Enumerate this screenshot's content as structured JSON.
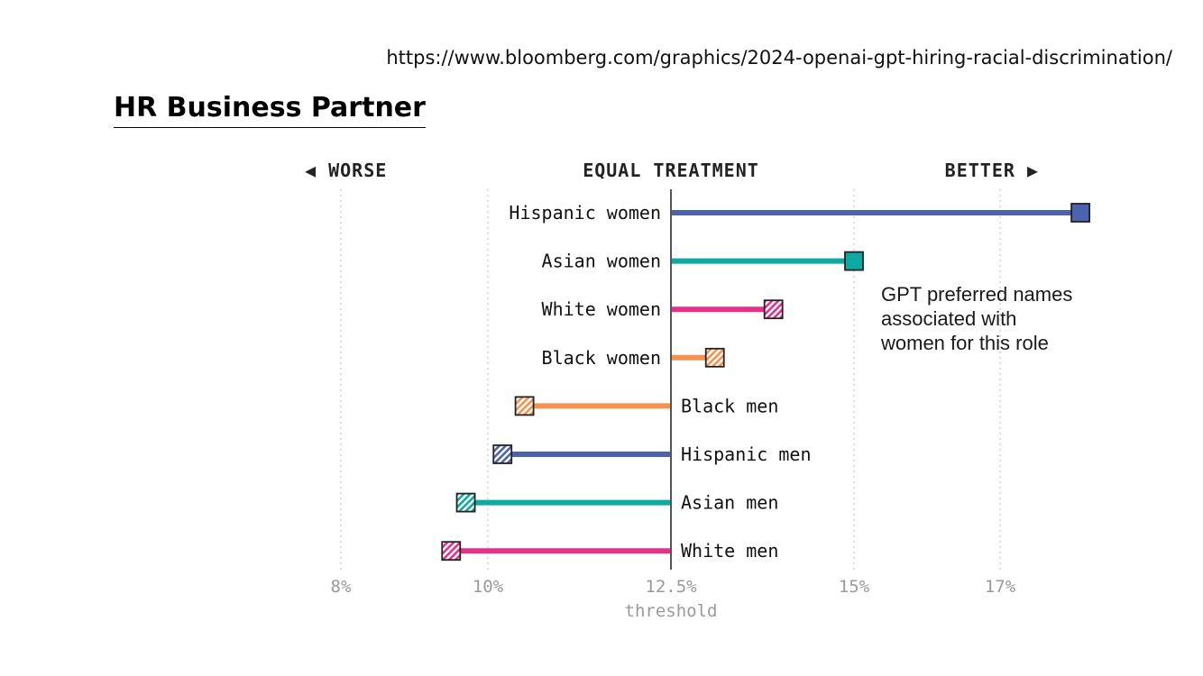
{
  "source_url": "https://www.bloomberg.com/graphics/2024-openai-gpt-hiring-racial-discrimination/",
  "slide_title": "HR Business Partner",
  "chart_data": {
    "type": "dot",
    "direction_labels": {
      "worse": "◀ WORSE",
      "equal": "EQUAL TREATMENT",
      "better": "BETTER ▶"
    },
    "x_ticks": [
      8,
      10,
      12.5,
      15,
      17
    ],
    "x_tick_labels": [
      "8%",
      "10%",
      "12.5%",
      "15%",
      "17%"
    ],
    "threshold": 12.5,
    "threshold_label": "threshold",
    "xlim": [
      7.5,
      18.5
    ],
    "grid": "vertical-dotted",
    "annotation": "GPT preferred names associated with women for this role",
    "annotation_lines": [
      "GPT preferred names",
      "associated with",
      "women for this role"
    ],
    "groups": [
      {
        "label": "Hispanic women",
        "value": 18.1,
        "color": "#4c63b0",
        "pattern": "solid"
      },
      {
        "label": "Asian women",
        "value": 15.0,
        "color": "#0eaaa2",
        "pattern": "solid"
      },
      {
        "label": "White women",
        "value": 13.9,
        "color": "#e0338a",
        "pattern": "hatched"
      },
      {
        "label": "Black women",
        "value": 13.1,
        "color": "#f6914e",
        "pattern": "hatched"
      },
      {
        "label": "Black men",
        "value": 10.5,
        "color": "#f6914e",
        "pattern": "hatched"
      },
      {
        "label": "Hispanic men",
        "value": 10.2,
        "color": "#4c63b0",
        "pattern": "hatched"
      },
      {
        "label": "Asian men",
        "value": 9.7,
        "color": "#0eaaa2",
        "pattern": "hatched"
      },
      {
        "label": "White men",
        "value": 9.5,
        "color": "#e0338a",
        "pattern": "hatched"
      }
    ]
  }
}
